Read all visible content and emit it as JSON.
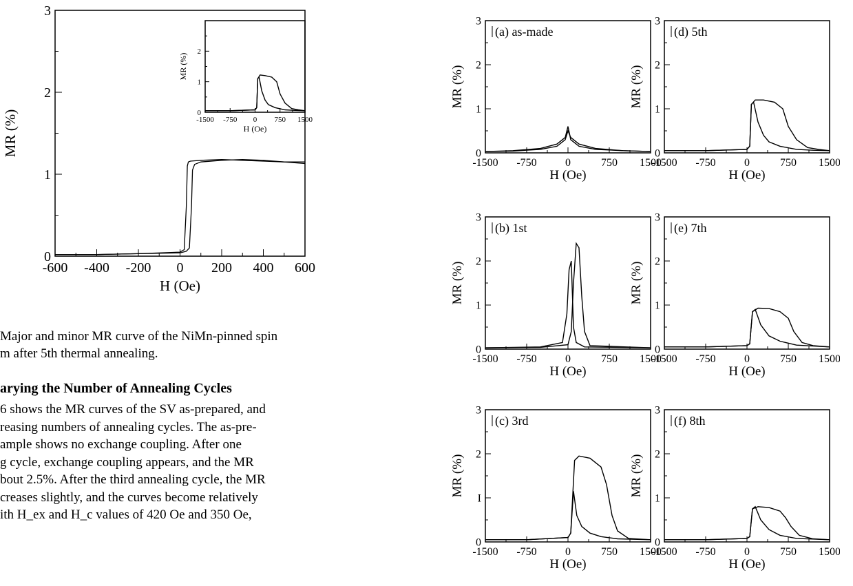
{
  "main_figure": {
    "caption_lines": [
      "Major and minor MR curve of the NiMn-pinned spin",
      "m after 5th thermal annealing."
    ]
  },
  "section": {
    "heading": "arying the Number of Annealing Cycles",
    "lines": [
      "6 shows the MR curves of the SV as-prepared, and",
      "reasing numbers of annealing cycles. The as-pre-",
      "ample shows no exchange coupling. After one",
      "g cycle, exchange coupling appears, and the MR",
      "bout 2.5%. After the third annealing cycle, the MR",
      "creases slightly, and the curves become relatively",
      "ith H_ex and H_c values of 420 Oe and 350 Oe,"
    ]
  },
  "chart_data": [
    {
      "id": "main",
      "type": "line",
      "title": "",
      "xlabel": "H (Oe)",
      "ylabel": "MR (%)",
      "xlim": [
        -600,
        600
      ],
      "ylim": [
        0,
        3
      ],
      "xticks": [
        -600,
        -400,
        -200,
        0,
        200,
        400,
        600
      ],
      "xtick_labels": [
        "-600",
        "-400",
        "-200",
        "0",
        "200",
        "400",
        "600"
      ],
      "yticks": [
        0,
        1,
        2,
        3
      ],
      "ytick_labels": [
        "0",
        "1",
        "2",
        "3"
      ],
      "series": [
        {
          "x": [
            -600,
            -400,
            -200,
            0,
            20,
            30,
            35,
            40,
            50,
            100,
            200,
            300,
            400,
            500,
            600
          ],
          "y": [
            0.02,
            0.02,
            0.03,
            0.05,
            0.08,
            0.6,
            1.1,
            1.15,
            1.16,
            1.17,
            1.18,
            1.17,
            1.16,
            1.15,
            1.15
          ]
        },
        {
          "x": [
            -600,
            -400,
            -200,
            0,
            30,
            45,
            55,
            60,
            70,
            100,
            200,
            300,
            400,
            500,
            600
          ],
          "y": [
            0.02,
            0.02,
            0.03,
            0.04,
            0.06,
            0.1,
            0.6,
            1.05,
            1.12,
            1.15,
            1.17,
            1.18,
            1.17,
            1.15,
            1.13
          ]
        }
      ],
      "inset": {
        "xlabel": "H (Oe)",
        "ylabel": "MR (%)",
        "xlim": [
          -1500,
          1500
        ],
        "ylim": [
          0,
          3
        ],
        "xtick_labels": [
          "-1500",
          "-750",
          "0",
          "750",
          "1500"
        ],
        "ytick_labels": [
          "0",
          "1",
          "2"
        ],
        "series": [
          {
            "x": [
              -1500,
              -750,
              0,
              50,
              80,
              150,
              300,
              500,
              650,
              750,
              900,
              1100,
              1300,
              1500
            ],
            "y": [
              0.05,
              0.05,
              0.08,
              0.15,
              1.1,
              1.22,
              1.2,
              1.15,
              1.0,
              0.6,
              0.3,
              0.12,
              0.08,
              0.05
            ]
          },
          {
            "x": [
              -1500,
              -750,
              0,
              50,
              80,
              120,
              200,
              300,
              400,
              600,
              900,
              1200,
              1500
            ],
            "y": [
              0.05,
              0.05,
              0.08,
              0.15,
              1.1,
              1.15,
              0.7,
              0.4,
              0.25,
              0.15,
              0.08,
              0.06,
              0.05
            ]
          }
        ]
      }
    },
    {
      "id": "a",
      "type": "line",
      "title": "(a) as-made",
      "xlabel": "H (Oe)",
      "ylabel": "MR (%)",
      "xlim": [
        -1500,
        1500
      ],
      "ylim": [
        0,
        3
      ],
      "xtick_labels": [
        "-1500",
        "-750",
        "0",
        "750",
        "1500"
      ],
      "ytick_labels": [
        "0",
        "1",
        "2",
        "3"
      ],
      "series": [
        {
          "x": [
            -1500,
            -1000,
            -500,
            -200,
            -50,
            0,
            50,
            200,
            500,
            1000,
            1500
          ],
          "y": [
            0.03,
            0.05,
            0.1,
            0.2,
            0.35,
            0.6,
            0.3,
            0.15,
            0.08,
            0.05,
            0.03
          ]
        },
        {
          "x": [
            -1500,
            -1000,
            -500,
            -200,
            -50,
            0,
            50,
            200,
            500,
            1000,
            1500
          ],
          "y": [
            0.03,
            0.04,
            0.08,
            0.15,
            0.3,
            0.5,
            0.35,
            0.2,
            0.1,
            0.05,
            0.03
          ]
        }
      ]
    },
    {
      "id": "b",
      "type": "line",
      "title": "(b) 1st",
      "xlabel": "H (Oe)",
      "ylabel": "MR (%)",
      "xlim": [
        -1500,
        1500
      ],
      "ylim": [
        0,
        3
      ],
      "xtick_labels": [
        "-1500",
        "-750",
        "0",
        "750",
        "1500"
      ],
      "ytick_labels": [
        "0",
        "1",
        "2",
        "3"
      ],
      "series": [
        {
          "x": [
            -1500,
            -500,
            -100,
            -20,
            20,
            60,
            100,
            150,
            300,
            1500
          ],
          "y": [
            0.03,
            0.05,
            0.15,
            0.8,
            1.8,
            2.0,
            0.5,
            0.15,
            0.05,
            0.03
          ]
        },
        {
          "x": [
            -1500,
            -500,
            0,
            60,
            100,
            150,
            200,
            250,
            300,
            400,
            1500
          ],
          "y": [
            0.03,
            0.04,
            0.1,
            0.4,
            1.5,
            2.4,
            2.3,
            1.2,
            0.4,
            0.08,
            0.03
          ]
        }
      ]
    },
    {
      "id": "c",
      "type": "line",
      "title": "(c) 3rd",
      "xlabel": "H (Oe)",
      "ylabel": "MR (%)",
      "xlim": [
        -1500,
        1500
      ],
      "ylim": [
        0,
        3
      ],
      "xtick_labels": [
        "-1500",
        "-750",
        "0",
        "750",
        "1500"
      ],
      "ytick_labels": [
        "0",
        "I",
        "2",
        "3"
      ],
      "series": [
        {
          "x": [
            -1500,
            -750,
            0,
            50,
            120,
            200,
            400,
            600,
            700,
            800,
            900,
            1100,
            1500
          ],
          "y": [
            0.05,
            0.05,
            0.1,
            0.2,
            1.85,
            1.95,
            1.9,
            1.7,
            1.3,
            0.6,
            0.25,
            0.08,
            0.05
          ]
        },
        {
          "x": [
            -1500,
            -750,
            0,
            50,
            100,
            160,
            250,
            400,
            600,
            900,
            1500
          ],
          "y": [
            0.05,
            0.05,
            0.1,
            0.2,
            1.15,
            0.6,
            0.35,
            0.2,
            0.12,
            0.07,
            0.05
          ]
        }
      ]
    },
    {
      "id": "d",
      "type": "line",
      "title": "(d) 5th",
      "xlabel": "H (Oe)",
      "ylabel": "MR (%)",
      "xlim": [
        -1500,
        1500
      ],
      "ylim": [
        0,
        3
      ],
      "xtick_labels": [
        "-1500",
        "-750",
        "0",
        "750",
        "1500"
      ],
      "ytick_labels": [
        "0",
        "1",
        "2",
        "3"
      ],
      "series": [
        {
          "x": [
            -1500,
            -750,
            0,
            50,
            80,
            150,
            300,
            500,
            650,
            750,
            900,
            1100,
            1300,
            1500
          ],
          "y": [
            0.05,
            0.05,
            0.08,
            0.15,
            1.1,
            1.2,
            1.2,
            1.15,
            1.0,
            0.6,
            0.3,
            0.12,
            0.08,
            0.05
          ]
        },
        {
          "x": [
            -1500,
            -750,
            0,
            50,
            80,
            120,
            200,
            300,
            400,
            600,
            900,
            1200,
            1500
          ],
          "y": [
            0.05,
            0.05,
            0.08,
            0.15,
            1.1,
            1.15,
            0.7,
            0.4,
            0.25,
            0.15,
            0.08,
            0.06,
            0.05
          ]
        }
      ]
    },
    {
      "id": "e",
      "type": "line",
      "title": "(e) 7th",
      "xlabel": "H (Oe)",
      "ylabel": "MR (%)",
      "xlim": [
        -1500,
        1500
      ],
      "ylim": [
        0,
        3
      ],
      "xtick_labels": [
        "-1500",
        "-750",
        "0",
        "750",
        "1500"
      ],
      "ytick_labels": [
        "0",
        "1",
        "2",
        "3"
      ],
      "series": [
        {
          "x": [
            -1500,
            -750,
            0,
            50,
            100,
            200,
            400,
            600,
            750,
            850,
            1000,
            1200,
            1500
          ],
          "y": [
            0.05,
            0.05,
            0.08,
            0.12,
            0.85,
            0.93,
            0.92,
            0.85,
            0.7,
            0.4,
            0.15,
            0.08,
            0.05
          ]
        },
        {
          "x": [
            -1500,
            -750,
            0,
            50,
            100,
            150,
            250,
            400,
            600,
            900,
            1500
          ],
          "y": [
            0.05,
            0.05,
            0.08,
            0.12,
            0.85,
            0.9,
            0.55,
            0.3,
            0.18,
            0.09,
            0.05
          ]
        }
      ]
    },
    {
      "id": "f",
      "type": "line",
      "title": "(f) 8th",
      "xlabel": "H (Oe)",
      "ylabel": "MR (%)",
      "xlim": [
        -1500,
        1500
      ],
      "ylim": [
        0,
        3
      ],
      "xtick_labels": [
        "-1500",
        "-750",
        "0",
        "750",
        "1500"
      ],
      "ytick_labels": [
        "0",
        "1",
        "2",
        "3"
      ],
      "series": [
        {
          "x": [
            -1500,
            -750,
            0,
            50,
            100,
            200,
            400,
            600,
            700,
            800,
            950,
            1200,
            1500
          ],
          "y": [
            0.05,
            0.05,
            0.08,
            0.12,
            0.75,
            0.8,
            0.78,
            0.7,
            0.55,
            0.35,
            0.15,
            0.07,
            0.05
          ]
        },
        {
          "x": [
            -1500,
            -750,
            0,
            50,
            100,
            150,
            250,
            400,
            600,
            900,
            1500
          ],
          "y": [
            0.05,
            0.05,
            0.08,
            0.12,
            0.75,
            0.8,
            0.5,
            0.28,
            0.15,
            0.08,
            0.05
          ]
        }
      ]
    }
  ]
}
